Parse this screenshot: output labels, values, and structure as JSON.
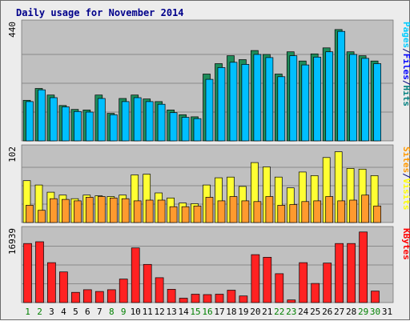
{
  "chart_data": {
    "type": "bar",
    "title": "Daily usage for November 2014",
    "categories": [
      "1",
      "2",
      "3",
      "4",
      "5",
      "6",
      "7",
      "8",
      "9",
      "10",
      "11",
      "12",
      "13",
      "14",
      "15",
      "16",
      "17",
      "18",
      "19",
      "20",
      "21",
      "22",
      "23",
      "24",
      "25",
      "26",
      "27",
      "28",
      "29",
      "30",
      "31"
    ],
    "weekend_days": [
      "1",
      "2",
      "8",
      "9",
      "15",
      "16",
      "22",
      "23",
      "29",
      "30"
    ],
    "panels": [
      {
        "id": "hits-files",
        "ymax_label": "440",
        "ymax": 440,
        "legend": [
          "Pages",
          "/",
          "Files",
          "/",
          "Hits"
        ],
        "legend_colors": [
          "#00ccff",
          "#000080",
          "#0000ff",
          "#000080",
          "#008080"
        ],
        "series": [
          {
            "name": "Hits",
            "color": "#1e8c5a",
            "values": [
              155,
              200,
              175,
              135,
              120,
              118,
              175,
              105,
              162,
              175,
              160,
              150,
              118,
              100,
              92,
              255,
              295,
              325,
              310,
              345,
              330,
              255,
              340,
              305,
              332,
              355,
              425,
              340,
              325,
              305,
              null
            ]
          },
          {
            "name": "Files",
            "color": "#00bfff",
            "values": [
              150,
              195,
              165,
              130,
              112,
              110,
              162,
              100,
              150,
              165,
              150,
              140,
              108,
              90,
              85,
              235,
              280,
              300,
              292,
              330,
              318,
              245,
              325,
              290,
              320,
              340,
              418,
              330,
              315,
              295,
              null
            ]
          }
        ]
      },
      {
        "id": "sites-visits",
        "ymax_label": "102",
        "ymax": 102,
        "legend": [
          "Sites",
          "/",
          "Visits"
        ],
        "legend_colors": [
          "#ff9900",
          "#000080",
          "#ffff00"
        ],
        "series": [
          {
            "name": "Visits",
            "color": "#ffff33",
            "values": [
              58,
              52,
              42,
              38,
              33,
              38,
              37,
              36,
              38,
              66,
              67,
              41,
              34,
              27,
              26,
              52,
              62,
              63,
              50,
              83,
              77,
              63,
              48,
              70,
              65,
              90,
              98,
              75,
              74,
              65,
              null
            ]
          },
          {
            "name": "Sites",
            "color": "#ff9a2e",
            "values": [
              24,
              17,
              33,
              32,
              30,
              35,
              36,
              34,
              33,
              30,
              31,
              31,
              22,
              22,
              23,
              35,
              30,
              36,
              30,
              29,
              36,
              24,
              25,
              29,
              30,
              36,
              30,
              31,
              38,
              23,
              null
            ]
          }
        ]
      },
      {
        "id": "kbytes",
        "ymax_label": "16939",
        "ymax": 16939,
        "legend": [
          "KBytes"
        ],
        "legend_colors": [
          "#ff0000"
        ],
        "series": [
          {
            "name": "KBytes",
            "color": "#ff2222",
            "values": [
              13300,
              13700,
              9000,
              6900,
              2300,
              2900,
              2500,
              2900,
              5300,
              12300,
              8600,
              5600,
              3000,
              1000,
              1900,
              1800,
              1900,
              2800,
              1500,
              10800,
              10200,
              6500,
              600,
              9000,
              4300,
              8900,
              13300,
              13300,
              15900,
              2600,
              null
            ]
          }
        ]
      }
    ]
  }
}
